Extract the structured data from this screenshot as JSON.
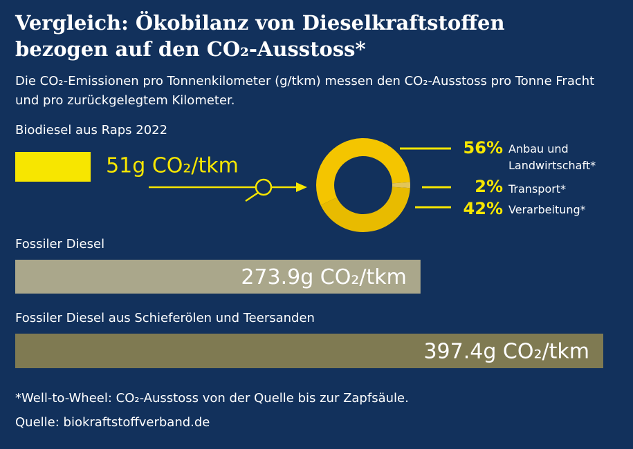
{
  "title": "Vergleich: Ökobilanz von Dieselkraftstoffen bezogen auf den CO₂-Ausstoss*",
  "subtitle": "Die CO₂-Emissionen pro Tonnenkilometer (g/tkm) messen den CO₂-Ausstoss pro Tonne Fracht und pro zurückgelegtem Kilometer.",
  "footnote": "*Well-to-Wheel: CO₂-Ausstoss von der Quelle bis zur Zapfsäule.",
  "source": "Quelle: biokraftstoffverband.de",
  "chart_data": [
    {
      "type": "bar",
      "orientation": "horizontal",
      "categories": [
        "Biodiesel aus Raps 2022",
        "Fossiler Diesel",
        "Fossiler Diesel aus Schieferölen und Teersanden"
      ],
      "values": [
        51,
        273.9,
        397.4
      ],
      "value_labels": [
        "51g CO₂/tkm",
        "273.9g CO₂/tkm",
        "397.4g CO₂/tkm"
      ],
      "colors": [
        "#f7e600",
        "#aaa78b",
        "#7f7a52"
      ]
    },
    {
      "type": "pie",
      "donut": true,
      "categories": [
        "Anbau und Landwirtschaft*",
        "Transport*",
        "Verarbeitung*"
      ],
      "values": [
        56,
        2,
        42
      ],
      "value_labels": [
        "56%",
        "2%",
        "42%"
      ],
      "colors": [
        "#f4c500",
        "#e2c558",
        "#e8bb00"
      ]
    }
  ]
}
